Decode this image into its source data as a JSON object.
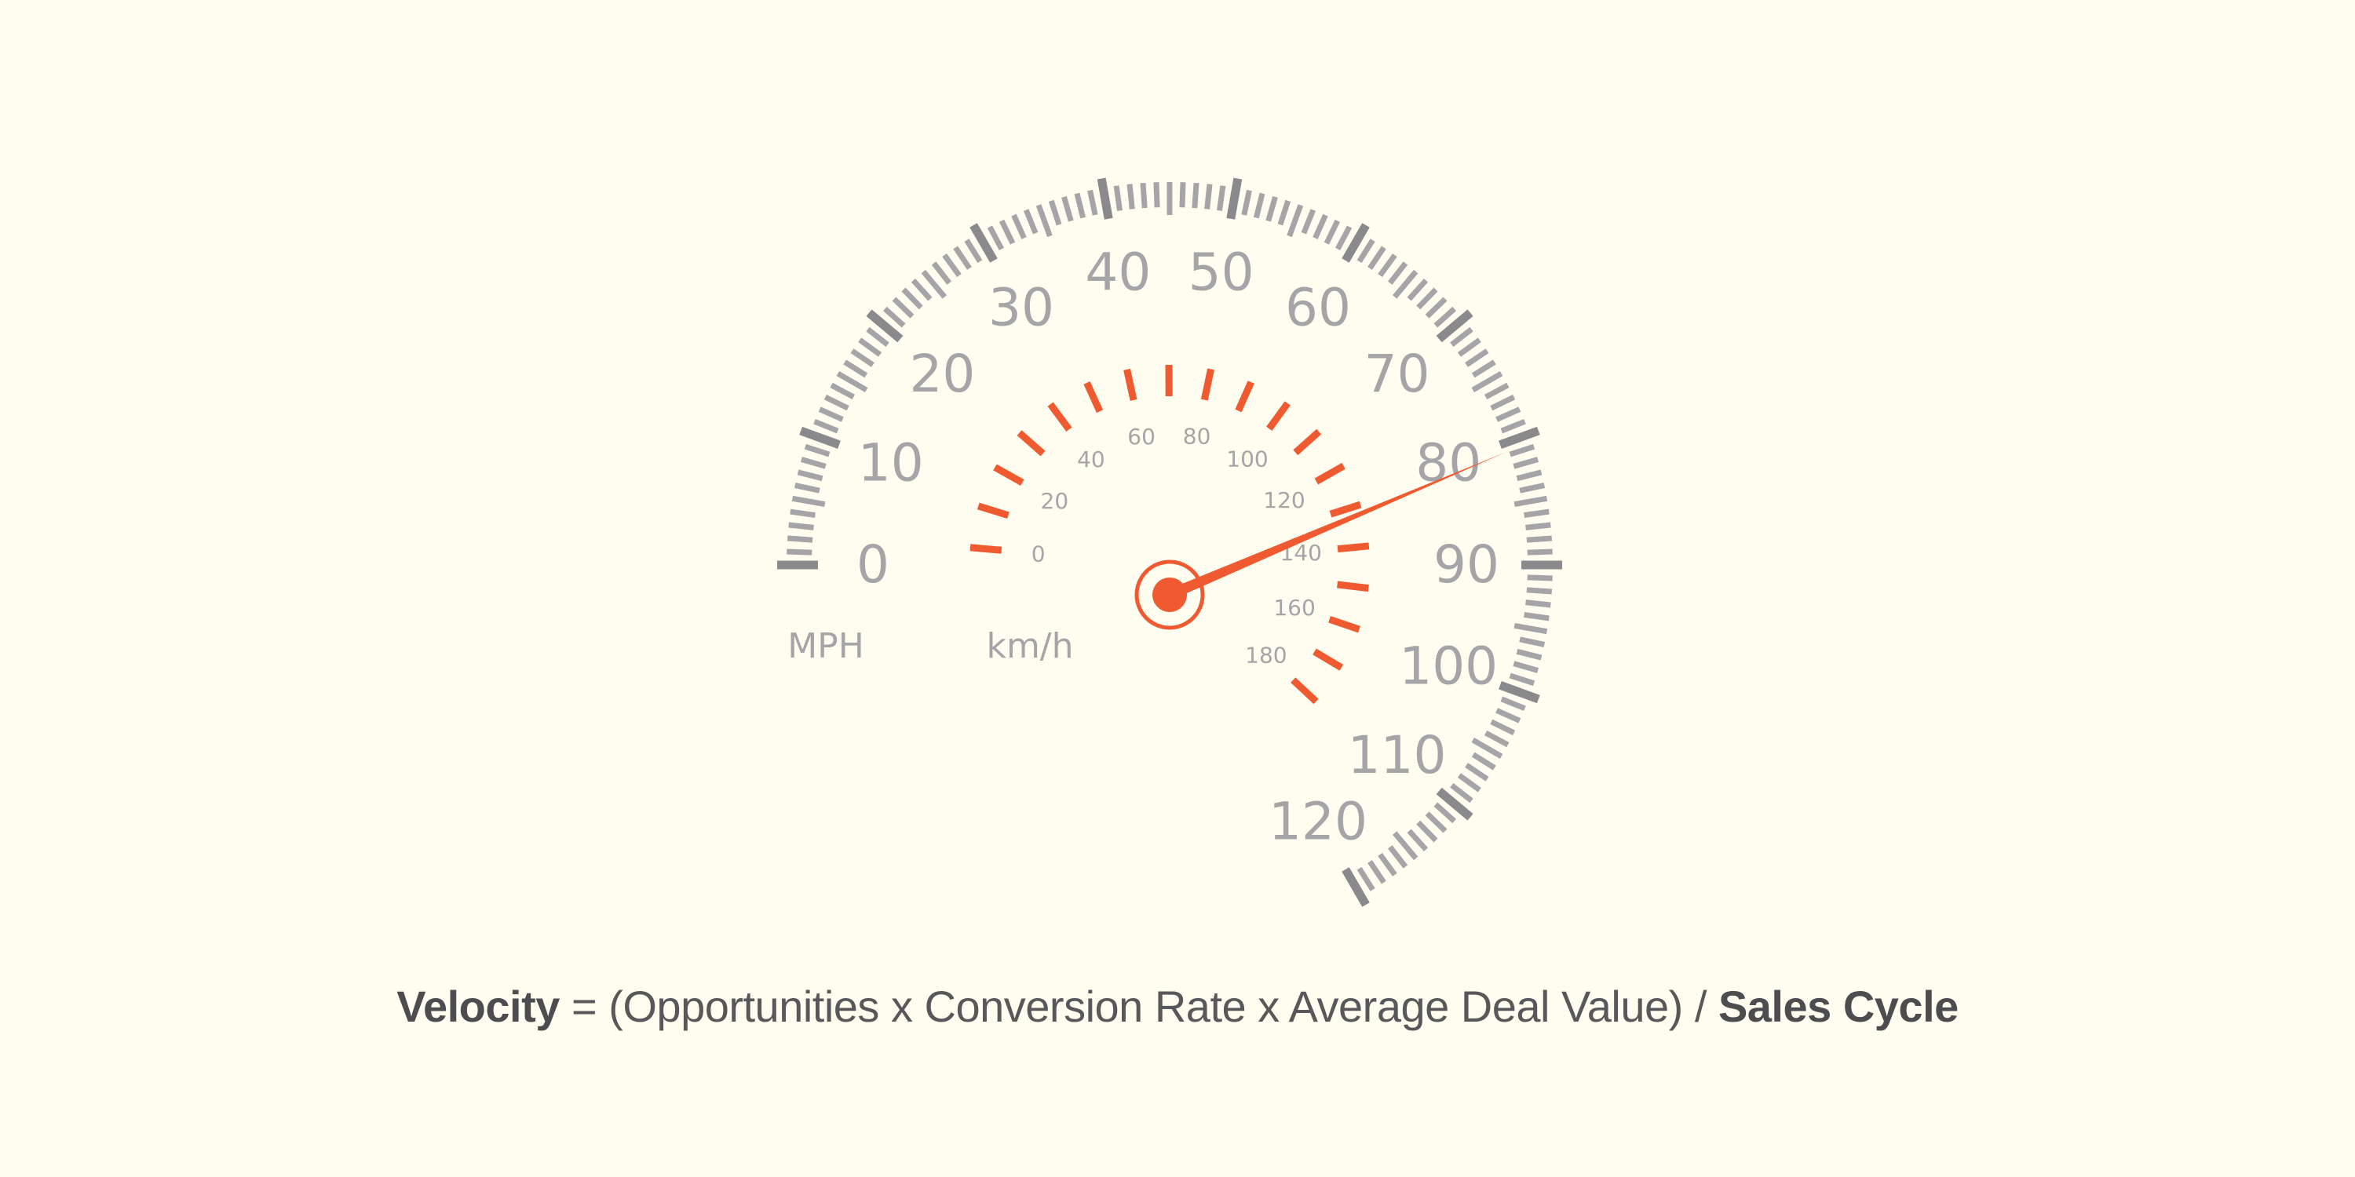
{
  "gauge": {
    "mph_labels": [
      "0",
      "10",
      "20",
      "30",
      "40",
      "50",
      "60",
      "70",
      "80",
      "90",
      "100",
      "110",
      "120"
    ],
    "kmh_labels": [
      "0",
      "20",
      "40",
      "60",
      "80",
      "100",
      "120",
      "140",
      "160",
      "180"
    ],
    "mph_unit": "MPH",
    "kmh_unit": "km/h",
    "needle_value_mph": 80,
    "accent_color": "#f05a30",
    "tick_color": "#a5a5a8",
    "major_tick_color": "#8a8a8d"
  },
  "formula": {
    "lead": "Velocity",
    "middle": " = (Opportunities x Conversion Rate x Average Deal Value) / ",
    "tail": "Sales Cycle"
  }
}
